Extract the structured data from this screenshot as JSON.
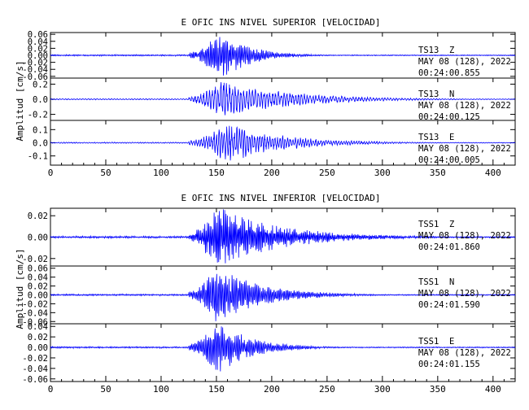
{
  "chart_data": [
    {
      "type": "line",
      "title": "E OFIC INS NIVEL SUPERIOR [VELOCIDAD]",
      "ylabel": "Amplitud [cm/s]",
      "xlabel": "",
      "xlim": [
        0,
        420
      ],
      "xticks": [
        "0",
        "50",
        "100",
        "150",
        "200",
        "250",
        "300",
        "350",
        "400"
      ],
      "channels": [
        {
          "station": "TS13",
          "component": "Z",
          "date": "MAY 08 (128), 2022",
          "time": "00:24:00.855",
          "ylim": [
            -0.065,
            0.065
          ],
          "yticks": [
            "0.06",
            "0.04",
            "0.02",
            "0.00",
            "-0.02",
            "-0.04",
            "-0.06"
          ],
          "peak": 0.06,
          "onset": 125,
          "peak_time": 155,
          "decay": 25,
          "period": 1.4
        },
        {
          "station": "TS13",
          "component": "N",
          "date": "MAY 08 (128), 2022",
          "time": "00:24:00.125",
          "ylim": [
            -0.28,
            0.28
          ],
          "yticks": [
            "0.2",
            "0.0",
            "-0.2"
          ],
          "peak": 0.22,
          "onset": 125,
          "peak_time": 155,
          "decay": 60,
          "period": 2.6
        },
        {
          "station": "TS13",
          "component": "E",
          "date": "MAY 08 (128), 2022",
          "time": "00:24:00.005",
          "ylim": [
            -0.17,
            0.17
          ],
          "yticks": [
            "0.1",
            "0.0",
            "-0.1"
          ],
          "peak": 0.13,
          "onset": 125,
          "peak_time": 160,
          "decay": 50,
          "period": 2.3
        }
      ]
    },
    {
      "type": "line",
      "title": "E OFIC INS NIVEL INFERIOR [VELOCIDAD]",
      "ylabel": "Amplitud [cm/s]",
      "xlabel": "",
      "xlim": [
        0,
        420
      ],
      "xticks": [
        "0",
        "50",
        "100",
        "150",
        "200",
        "250",
        "300",
        "350",
        "400"
      ],
      "channels": [
        {
          "station": "TSS1",
          "component": "Z",
          "date": "MAY 08 (128), 2022",
          "time": "00:24:01.860",
          "ylim": [
            -0.027,
            0.027
          ],
          "yticks": [
            "0.02",
            "0.00",
            "-0.02"
          ],
          "peak": 0.025,
          "onset": 125,
          "peak_time": 150,
          "decay": 55,
          "period": 1.2
        },
        {
          "station": "TSS1",
          "component": "N",
          "date": "MAY 08 (128), 2022",
          "time": "00:24:01.590",
          "ylim": [
            -0.065,
            0.065
          ],
          "yticks": [
            "0.06",
            "0.04",
            "0.02",
            "0.00",
            "-0.02",
            "-0.04",
            "-0.06"
          ],
          "peak": 0.055,
          "onset": 125,
          "peak_time": 150,
          "decay": 40,
          "period": 1.4
        },
        {
          "station": "TSS1",
          "component": "E",
          "date": "MAY 08 (128), 2022",
          "time": "00:24:01.155",
          "ylim": [
            -0.065,
            0.045
          ],
          "yticks": [
            "0.04",
            "0.02",
            "0.00",
            "-0.02",
            "-0.04",
            "-0.06"
          ],
          "peak": 0.045,
          "onset": 125,
          "peak_time": 150,
          "decay": 30,
          "period": 1.4
        }
      ]
    }
  ]
}
